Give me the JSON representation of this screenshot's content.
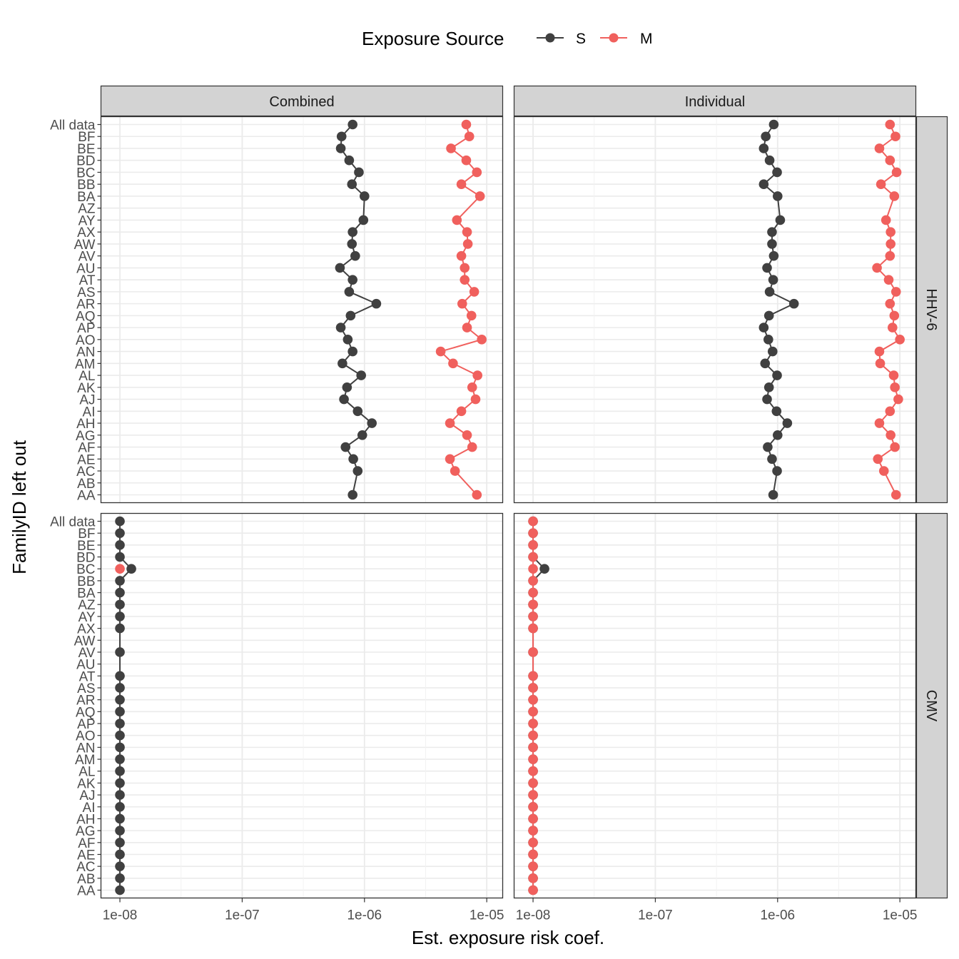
{
  "chart_data": {
    "type": "line",
    "x_scale": "log10",
    "xlim": [
      7e-09,
      1.35e-05
    ],
    "xlabel": "Est. exposure risk coef.",
    "ylabel": "FamilyID left out",
    "x_ticks": [
      {
        "value": 1e-08,
        "label": "1e-08"
      },
      {
        "value": 1e-07,
        "label": "1e-07"
      },
      {
        "value": 1e-06,
        "label": "1e-06"
      },
      {
        "value": 1e-05,
        "label": "1e-05"
      }
    ],
    "categories": [
      "All data",
      "BF",
      "BE",
      "BD",
      "BC",
      "BB",
      "BA",
      "AZ",
      "AY",
      "AX",
      "AW",
      "AV",
      "AU",
      "AT",
      "AS",
      "AR",
      "AQ",
      "AP",
      "AO",
      "AN",
      "AM",
      "AL",
      "AK",
      "AJ",
      "AI",
      "AH",
      "AG",
      "AF",
      "AE",
      "AC",
      "AB",
      "AA"
    ],
    "legend": {
      "title": "Exposure Source",
      "position": "top",
      "entries": [
        {
          "key": "S",
          "label": "S",
          "color": "#404040"
        },
        {
          "key": "M",
          "label": "M",
          "color": "#F0605D"
        }
      ]
    },
    "facet_columns": [
      "Combined",
      "Individual"
    ],
    "facet_rows": [
      "HHV-6",
      "CMV"
    ],
    "panels": [
      {
        "row": "HHV-6",
        "col": "Combined",
        "series": [
          {
            "name": "S",
            "values": [
              8e-07,
              6.5e-07,
              6.4e-07,
              7.5e-07,
              9e-07,
              7.9e-07,
              1e-06,
              null,
              9.8e-07,
              8e-07,
              7.9e-07,
              8.4e-07,
              6.3e-07,
              8e-07,
              7.5e-07,
              1.25e-06,
              7.7e-07,
              6.4e-07,
              7.3e-07,
              8e-07,
              6.6e-07,
              9.4e-07,
              7.2e-07,
              6.8e-07,
              8.8e-07,
              1.15e-06,
              9.6e-07,
              7e-07,
              8.1e-07,
              8.8e-07,
              null,
              8e-07
            ]
          },
          {
            "name": "M",
            "values": [
              6.8e-06,
              7.2e-06,
              5.1e-06,
              6.8e-06,
              8.3e-06,
              6.2e-06,
              8.8e-06,
              null,
              5.7e-06,
              6.9e-06,
              7e-06,
              6.2e-06,
              6.6e-06,
              6.6e-06,
              7.9e-06,
              6.3e-06,
              7.5e-06,
              6.9e-06,
              9.1e-06,
              4.2e-06,
              5.3e-06,
              8.4e-06,
              7.6e-06,
              8.1e-06,
              6.2e-06,
              5e-06,
              6.9e-06,
              7.6e-06,
              5e-06,
              5.5e-06,
              null,
              8.3e-06
            ]
          }
        ]
      },
      {
        "row": "HHV-6",
        "col": "Individual",
        "series": [
          {
            "name": "S",
            "values": [
              9.3e-07,
              8e-07,
              7.7e-07,
              8.6e-07,
              9.9e-07,
              7.7e-07,
              1e-06,
              null,
              1.05e-06,
              9e-07,
              9e-07,
              9.3e-07,
              8.2e-07,
              9.2e-07,
              8.6e-07,
              1.36e-06,
              8.5e-07,
              7.7e-07,
              8.4e-07,
              9.1e-07,
              7.9e-07,
              9.9e-07,
              8.5e-07,
              8.2e-07,
              9.8e-07,
              1.2e-06,
              1e-06,
              8.3e-07,
              9e-07,
              9.9e-07,
              null,
              9.2e-07
            ]
          },
          {
            "name": "M",
            "values": [
              8.3e-06,
              9.2e-06,
              6.8e-06,
              8.3e-06,
              9.4e-06,
              7e-06,
              9e-06,
              null,
              7.7e-06,
              8.4e-06,
              8.4e-06,
              8.3e-06,
              6.5e-06,
              8.1e-06,
              9.3e-06,
              8.3e-06,
              9e-06,
              8.7e-06,
              1e-05,
              6.8e-06,
              6.9e-06,
              8.9e-06,
              9.1e-06,
              9.7e-06,
              8.3e-06,
              6.8e-06,
              8.4e-06,
              9.1e-06,
              6.6e-06,
              7.4e-06,
              null,
              9.3e-06
            ]
          }
        ]
      },
      {
        "row": "CMV",
        "col": "Combined",
        "series": [
          {
            "name": "S",
            "values": [
              1e-08,
              1e-08,
              1e-08,
              1e-08,
              1.24e-08,
              1e-08,
              1e-08,
              1e-08,
              1e-08,
              1e-08,
              null,
              1e-08,
              null,
              1e-08,
              1e-08,
              1e-08,
              1e-08,
              1e-08,
              1e-08,
              1e-08,
              1e-08,
              1e-08,
              1e-08,
              1e-08,
              1e-08,
              1e-08,
              1e-08,
              1e-08,
              1e-08,
              1e-08,
              1e-08,
              1e-08
            ]
          },
          {
            "name": "M",
            "values": [
              null,
              null,
              null,
              null,
              1e-08,
              null,
              null,
              null,
              null,
              null,
              null,
              null,
              null,
              null,
              null,
              null,
              null,
              null,
              null,
              null,
              null,
              null,
              null,
              null,
              null,
              null,
              null,
              null,
              null,
              null,
              null,
              null
            ]
          }
        ]
      },
      {
        "row": "CMV",
        "col": "Individual",
        "series": [
          {
            "name": "S",
            "values": [
              1e-08,
              1e-08,
              1e-08,
              1e-08,
              1.24e-08,
              1e-08,
              1e-08,
              1e-08,
              1e-08,
              1e-08,
              null,
              1e-08,
              null,
              1e-08,
              1e-08,
              1e-08,
              1e-08,
              1e-08,
              1e-08,
              1e-08,
              1e-08,
              1e-08,
              1e-08,
              1e-08,
              1e-08,
              1e-08,
              1e-08,
              1e-08,
              1e-08,
              1e-08,
              1e-08,
              1e-08
            ]
          },
          {
            "name": "M",
            "values": [
              1e-08,
              1e-08,
              1e-08,
              1e-08,
              1e-08,
              1e-08,
              1e-08,
              1e-08,
              1e-08,
              1e-08,
              null,
              1e-08,
              null,
              1e-08,
              1e-08,
              1e-08,
              1e-08,
              1e-08,
              1e-08,
              1e-08,
              1e-08,
              1e-08,
              1e-08,
              1e-08,
              1e-08,
              1e-08,
              1e-08,
              1e-08,
              1e-08,
              1e-08,
              1e-08,
              1e-08
            ]
          }
        ]
      }
    ]
  }
}
